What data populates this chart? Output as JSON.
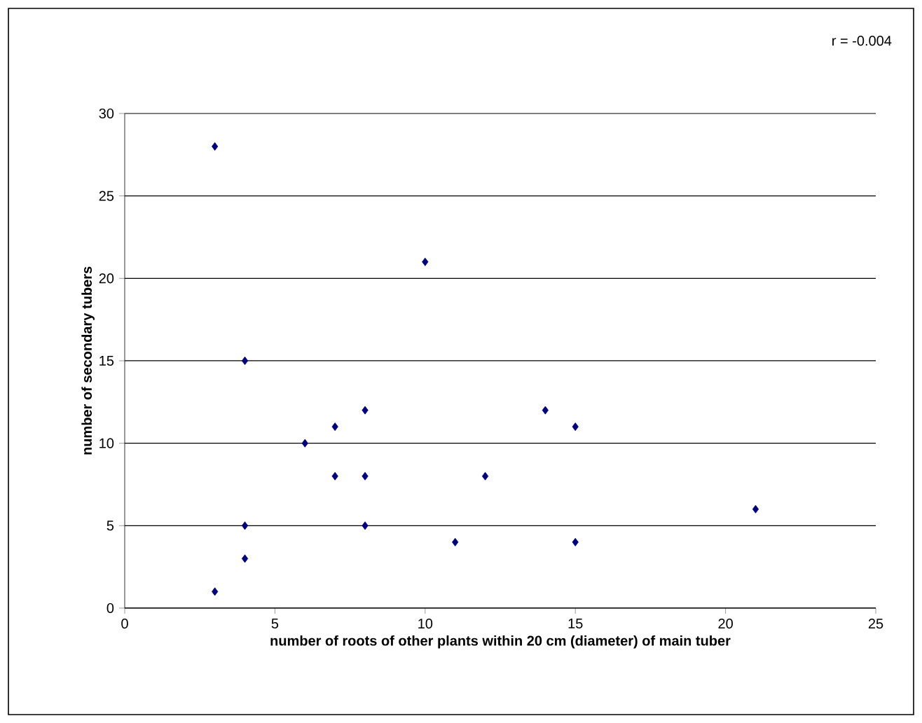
{
  "chart_data": {
    "type": "scatter",
    "xlabel": "number of roots of other plants within 20 cm (diameter) of main tuber",
    "ylabel": "number of secondary tubers",
    "annotations": [
      "r = -0.004"
    ],
    "x": [
      3,
      10,
      4,
      14,
      8,
      7,
      15,
      6,
      7,
      8,
      12,
      21,
      4,
      8,
      11,
      15,
      4,
      3
    ],
    "values": [
      28,
      21,
      15,
      12,
      12,
      11,
      11,
      10,
      8,
      8,
      8,
      6,
      5,
      5,
      4,
      4,
      3,
      1
    ],
    "color": "#000080",
    "marker": "diamond",
    "grid": "y",
    "xlim": [
      0,
      25
    ],
    "ylim": [
      0,
      30
    ],
    "xticks": [
      0,
      5,
      10,
      15,
      20,
      25
    ],
    "yticks": [
      0,
      5,
      10,
      15,
      20,
      25,
      30
    ]
  }
}
